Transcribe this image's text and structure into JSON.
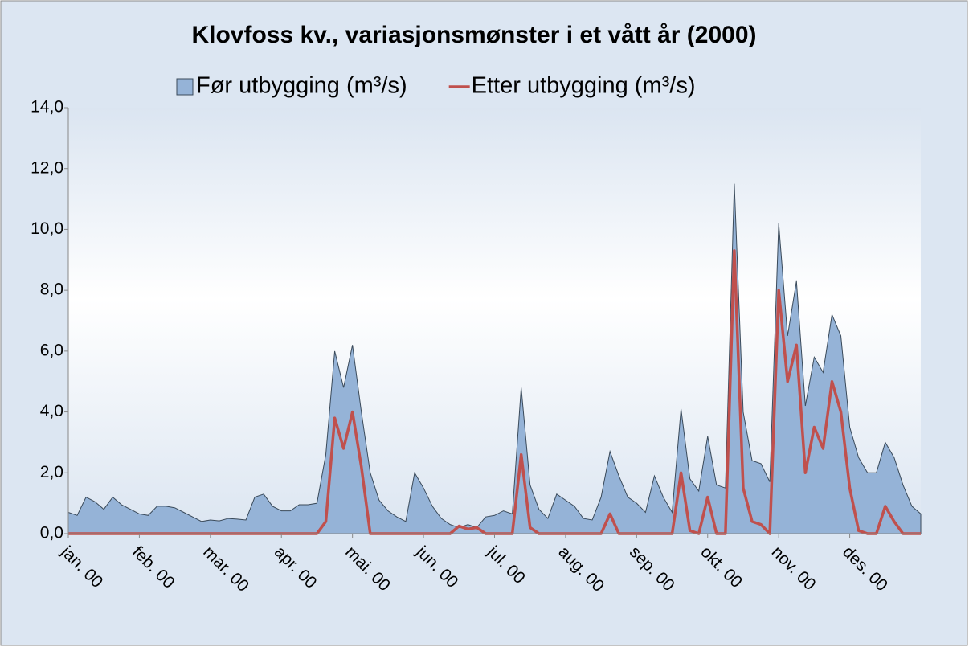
{
  "chart_data": {
    "type": "area_line",
    "title": "Klovfoss kv., variasjonsmønster i et vått år (2000)",
    "categories": [
      "jan. 00",
      null,
      null,
      null,
      null,
      null,
      null,
      null,
      "feb. 00",
      null,
      null,
      null,
      null,
      null,
      null,
      null,
      "mar. 00",
      null,
      null,
      null,
      null,
      null,
      null,
      null,
      "apr. 00",
      null,
      null,
      null,
      null,
      null,
      null,
      null,
      "mai. 00",
      null,
      null,
      null,
      null,
      null,
      null,
      null,
      "jun. 00",
      null,
      null,
      null,
      null,
      null,
      null,
      null,
      "jul. 00",
      null,
      null,
      null,
      null,
      null,
      null,
      null,
      "aug. 00",
      null,
      null,
      null,
      null,
      null,
      null,
      null,
      "sep. 00",
      null,
      null,
      null,
      null,
      null,
      null,
      null,
      "okt. 00",
      null,
      null,
      null,
      null,
      null,
      null,
      null,
      "nov. 00",
      null,
      null,
      null,
      null,
      null,
      null,
      null,
      "des. 00",
      null,
      null,
      null,
      null,
      null,
      null,
      null,
      null
    ],
    "series": [
      {
        "name": "Før utbygging (m³/s)",
        "kind": "area",
        "color": "#95b3d7",
        "values": [
          0.7,
          0.6,
          1.2,
          1.05,
          0.8,
          1.2,
          0.95,
          0.8,
          0.65,
          0.6,
          0.9,
          0.9,
          0.85,
          0.7,
          0.55,
          0.4,
          0.45,
          0.42,
          0.5,
          0.48,
          0.45,
          1.2,
          1.3,
          0.9,
          0.75,
          0.75,
          0.95,
          0.95,
          1.0,
          2.6,
          6.0,
          4.8,
          6.2,
          4.0,
          2.0,
          1.1,
          0.75,
          0.55,
          0.4,
          2.0,
          1.5,
          0.9,
          0.5,
          0.3,
          0.2,
          0.3,
          0.2,
          0.55,
          0.6,
          0.75,
          0.65,
          4.8,
          1.6,
          0.8,
          0.5,
          1.3,
          1.1,
          0.9,
          0.5,
          0.45,
          1.2,
          2.7,
          1.9,
          1.2,
          1.0,
          0.7,
          1.9,
          1.2,
          0.7,
          4.1,
          1.8,
          1.4,
          3.2,
          1.6,
          1.5,
          11.5,
          4.0,
          2.4,
          2.3,
          1.7,
          10.2,
          6.5,
          8.3,
          4.2,
          5.8,
          5.3,
          7.2,
          6.5,
          3.5,
          2.5,
          2.0,
          2.0,
          3.0,
          2.5,
          1.6,
          0.9,
          0.65
        ]
      },
      {
        "name": "Etter utbygging (m³/s)",
        "kind": "line",
        "color": "#c0504d",
        "values": [
          0,
          0,
          0,
          0,
          0,
          0,
          0,
          0,
          0,
          0,
          0,
          0,
          0,
          0,
          0,
          0,
          0,
          0,
          0,
          0,
          0,
          0,
          0,
          0,
          0,
          0,
          0,
          0,
          0,
          0.4,
          3.8,
          2.8,
          4.0,
          2.2,
          0,
          0,
          0,
          0,
          0,
          0,
          0,
          0,
          0,
          0,
          0.25,
          0.15,
          0.2,
          0,
          0,
          0,
          0,
          2.6,
          0.2,
          0,
          0,
          0,
          0,
          0,
          0,
          0,
          0,
          0.65,
          0,
          0,
          0,
          0,
          0,
          0,
          0,
          2.0,
          0.1,
          0,
          1.2,
          0,
          0,
          9.3,
          1.5,
          0.4,
          0.3,
          0,
          8.0,
          5.0,
          6.2,
          2.0,
          3.5,
          2.8,
          5.0,
          4.0,
          1.5,
          0.1,
          0,
          0,
          0.9,
          0.4,
          0,
          0,
          0
        ]
      }
    ],
    "ylim": [
      0,
      14
    ],
    "yticks": [
      {
        "value": 0,
        "label": "0,0"
      },
      {
        "value": 2,
        "label": "2,0"
      },
      {
        "value": 4,
        "label": "4,0"
      },
      {
        "value": 6,
        "label": "6,0"
      },
      {
        "value": 8,
        "label": "8,0"
      },
      {
        "value": 10,
        "label": "10,0"
      },
      {
        "value": 12,
        "label": "12,0"
      },
      {
        "value": 14,
        "label": "14,0"
      }
    ],
    "legend": "top"
  }
}
